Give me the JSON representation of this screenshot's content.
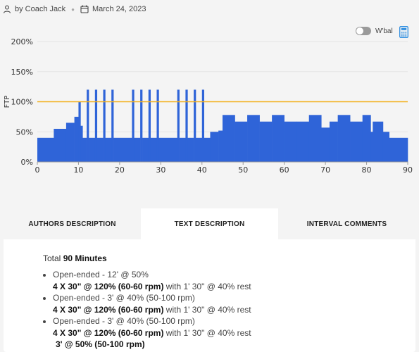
{
  "meta": {
    "author": "by Coach Jack",
    "date": "March 24, 2023"
  },
  "controls": {
    "wbal_label": "W'bal",
    "wbal_on": false
  },
  "chart_data": {
    "type": "area",
    "ylabel": "FTP",
    "xlim": [
      0,
      90
    ],
    "ylim": [
      0,
      200
    ],
    "x_ticks": [
      "0",
      "10",
      "20",
      "30",
      "40",
      "50",
      "60",
      "70",
      "80",
      "90"
    ],
    "y_ticks": [
      "0%",
      "50%",
      "100%",
      "150%",
      "200%"
    ],
    "reference_line": {
      "value": 100,
      "color": "#f2b01e"
    },
    "fill_color": "#2f64d8",
    "segments": [
      [
        0,
        4,
        40
      ],
      [
        4,
        7,
        55
      ],
      [
        7,
        9,
        65
      ],
      [
        9,
        10,
        75
      ],
      [
        10,
        10.5,
        100
      ],
      [
        10.5,
        11,
        60
      ],
      [
        11,
        12,
        40
      ],
      [
        12,
        12.5,
        120
      ],
      [
        12.5,
        14,
        40
      ],
      [
        14,
        14.5,
        120
      ],
      [
        14.5,
        16,
        40
      ],
      [
        16,
        16.5,
        120
      ],
      [
        16.5,
        18,
        40
      ],
      [
        18,
        18.5,
        120
      ],
      [
        18.5,
        23,
        40
      ],
      [
        23,
        23.5,
        120
      ],
      [
        23.5,
        25,
        40
      ],
      [
        25,
        25.5,
        120
      ],
      [
        25.5,
        27,
        40
      ],
      [
        27,
        27.5,
        120
      ],
      [
        27.5,
        29,
        40
      ],
      [
        29,
        29.5,
        120
      ],
      [
        29.5,
        34,
        40
      ],
      [
        34,
        34.5,
        120
      ],
      [
        34.5,
        36,
        40
      ],
      [
        36,
        36.5,
        120
      ],
      [
        36.5,
        38,
        40
      ],
      [
        38,
        38.5,
        120
      ],
      [
        38.5,
        40,
        40
      ],
      [
        40,
        40.5,
        120
      ],
      [
        40.5,
        42,
        40
      ],
      [
        42,
        44,
        50
      ],
      [
        44,
        45,
        52
      ],
      [
        45,
        48,
        78
      ],
      [
        48,
        51,
        67
      ],
      [
        51,
        54,
        78
      ],
      [
        54,
        57,
        67
      ],
      [
        57,
        60,
        78
      ],
      [
        60,
        63,
        67
      ],
      [
        63,
        66,
        67
      ],
      [
        66,
        69,
        78
      ],
      [
        69,
        71,
        57
      ],
      [
        71,
        73,
        67
      ],
      [
        73,
        76,
        78
      ],
      [
        76,
        79,
        67
      ],
      [
        79,
        81,
        78
      ],
      [
        81,
        81.5,
        50
      ],
      [
        81.5,
        84,
        67
      ],
      [
        84,
        85.5,
        50
      ],
      [
        85.5,
        90,
        40
      ]
    ]
  },
  "tabs": [
    {
      "label": "AUTHORS DESCRIPTION",
      "active": false
    },
    {
      "label": "TEXT DESCRIPTION",
      "active": true
    },
    {
      "label": "INTERVAL COMMENTS",
      "active": false
    }
  ],
  "description": {
    "total_prefix": "Total",
    "total_value": "90 Minutes",
    "items": [
      {
        "line1": "Open-ended - 12' @ 50%",
        "line2_bold": "4 X 30\" @ 120% (60-60 rpm)",
        "line2_rest": " with 1' 30\" @ 40% rest"
      },
      {
        "line1": "Open-ended - 3' @ 40% (50-100 rpm)",
        "line2_bold": "4 X 30\" @ 120% (60-60 rpm)",
        "line2_rest": " with 1' 30\" @ 40% rest"
      },
      {
        "line1": "Open-ended - 3' @ 40% (50-100 rpm)",
        "line2_bold": "4 X 30\" @ 120% (60-60 rpm)",
        "line2_rest": " with 1' 30\" @ 40% rest"
      }
    ],
    "extra": "3' @ 50% (50-100 rpm)"
  }
}
